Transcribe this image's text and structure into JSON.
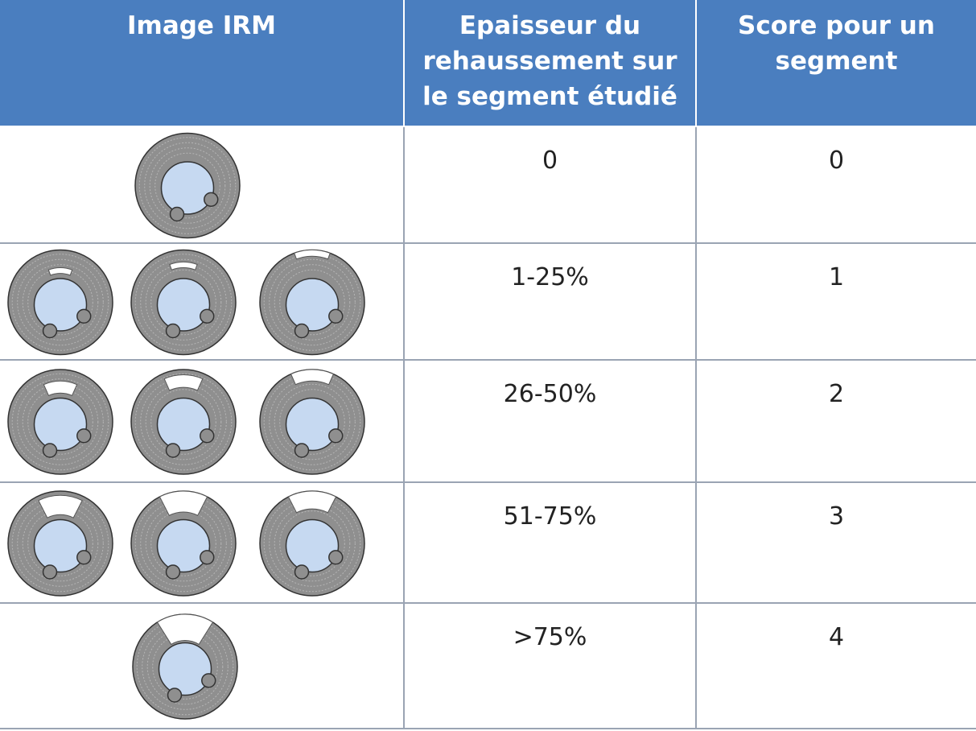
{
  "table": {
    "header": [
      "Image IRM",
      "Epaisseur du rehaussement sur le segment étudié",
      "Score pour un segment"
    ],
    "rows": [
      [
        "0",
        0
      ],
      [
        "1-25%",
        1
      ],
      [
        "26-50%",
        2
      ],
      [
        "51-75%",
        3
      ],
      [
        ">75%",
        4
      ]
    ]
  }
}
